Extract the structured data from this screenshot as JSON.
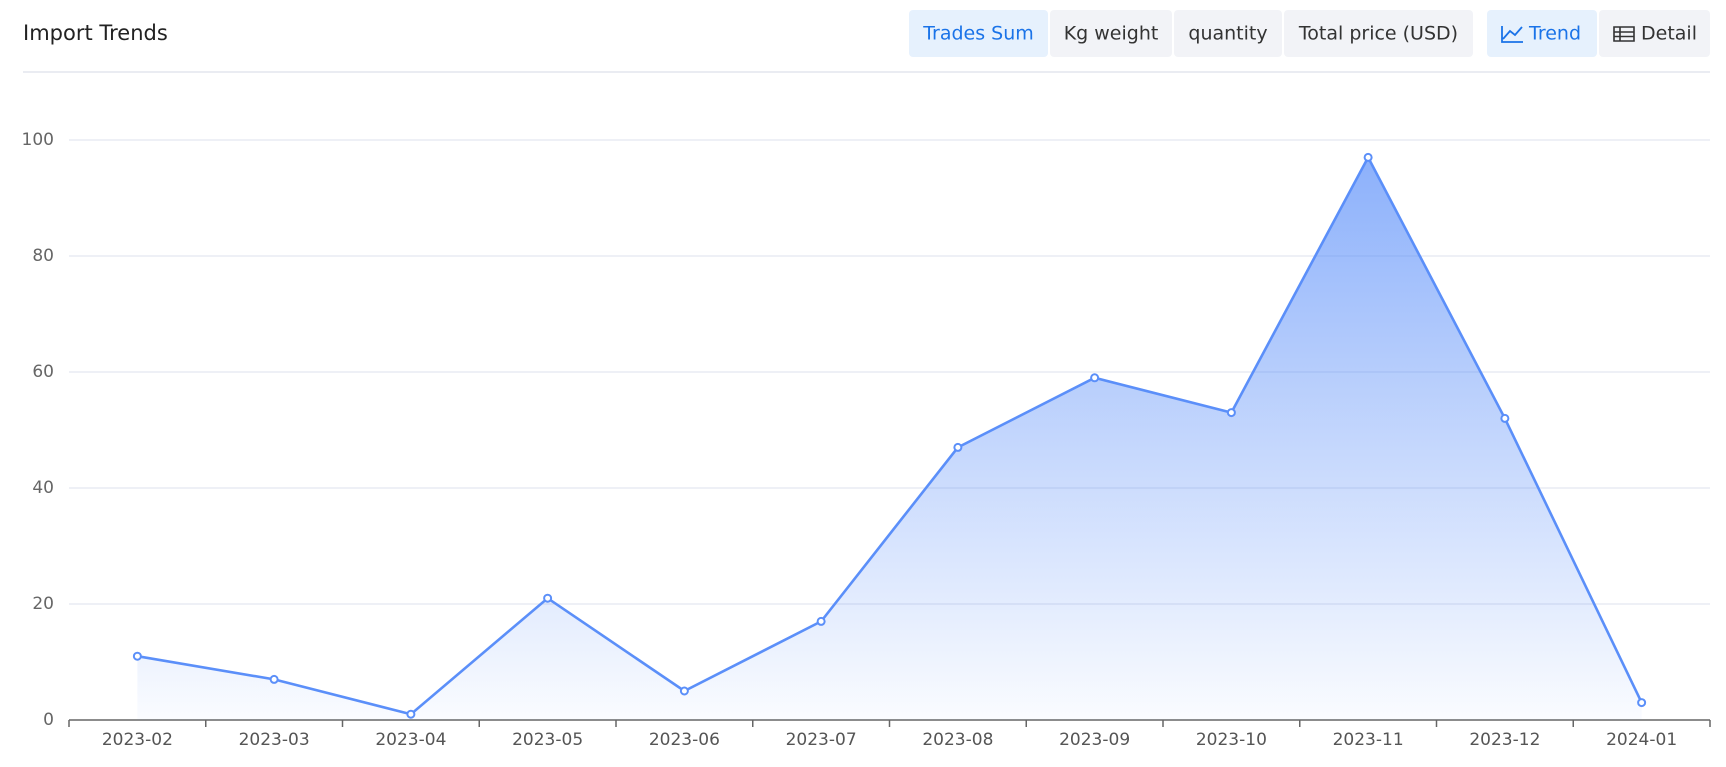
{
  "toolbar": {
    "metrics": [
      "Trades Sum",
      "Kg weight",
      "quantity",
      "Total price (USD)"
    ],
    "active_metric": 0,
    "views": [
      "Trend",
      "Detail"
    ],
    "active_view": 0
  },
  "chart_data": {
    "type": "line",
    "title": "Import Trends",
    "categories": [
      "2023-02",
      "2023-03",
      "2023-04",
      "2023-05",
      "2023-06",
      "2023-07",
      "2023-08",
      "2023-09",
      "2023-10",
      "2023-11",
      "2023-12",
      "2024-01"
    ],
    "series": [
      {
        "name": "Trades Sum",
        "color": "#5b8ff9",
        "values": [
          11,
          7,
          1,
          21,
          5,
          17,
          47,
          59,
          53,
          97,
          52,
          3
        ]
      }
    ],
    "ylim": [
      0,
      100
    ],
    "yticks": [
      0,
      20,
      40,
      60,
      80,
      100
    ],
    "grid": true,
    "area": true
  }
}
